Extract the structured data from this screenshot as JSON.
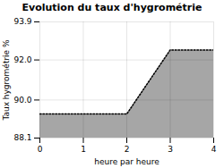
{
  "chart_data": {
    "type": "area",
    "title": "Evolution du taux d'hygrométrie",
    "xlabel": "heure par heure",
    "ylabel": "Taux hygrométrie %",
    "x": [
      0,
      1,
      2,
      3,
      4
    ],
    "values": [
      89.3,
      89.3,
      89.3,
      92.5,
      92.5
    ],
    "xlim": [
      0,
      4
    ],
    "ylim": [
      88.1,
      93.9
    ],
    "xticks": [
      0,
      1,
      2,
      3,
      4
    ],
    "yticks": [
      88.1,
      {
        "value": 90,
        "label": "90.0"
      },
      {
        "value": 92,
        "label": "92.0"
      },
      93.9
    ],
    "grid": true,
    "line_style": "dotted"
  }
}
